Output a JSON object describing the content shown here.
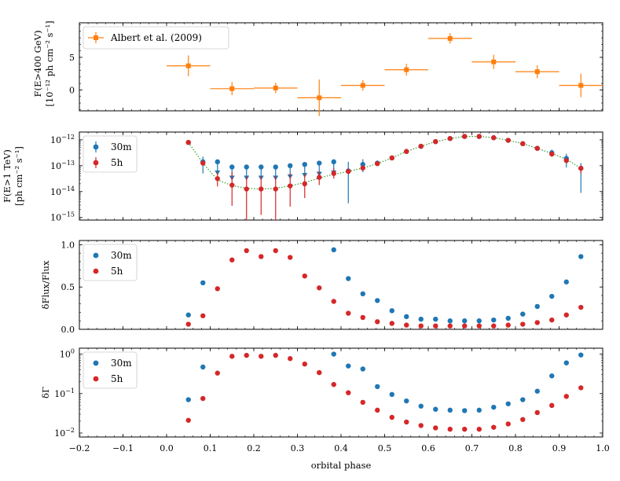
{
  "chart_data": [
    {
      "type": "scatter",
      "panel": "top",
      "ylabel_line1": "F(E>400 GeV)",
      "ylabel_line2": "[10⁻¹² ph cm⁻² s⁻¹]",
      "ylim": [
        -3.2,
        10.3
      ],
      "yticks": [
        0,
        5
      ],
      "ytick_labels": [
        "0",
        "5"
      ],
      "legend": [
        "Albert et al. (2009)"
      ],
      "series": [
        {
          "name": "Albert et al. (2009)",
          "color": "#ff7f0e",
          "x": [
            0.05,
            0.15,
            0.25,
            0.35,
            0.45,
            0.55,
            0.65,
            0.75,
            0.85,
            0.95
          ],
          "xerr": 0.05,
          "y": [
            3.7,
            0.2,
            0.3,
            -1.2,
            0.7,
            3.1,
            7.9,
            4.3,
            2.8,
            0.7
          ],
          "yerr": [
            1.6,
            1.0,
            0.8,
            2.8,
            0.8,
            0.9,
            0.8,
            1.1,
            1.0,
            1.8
          ]
        }
      ]
    },
    {
      "type": "scatter",
      "panel": "flux",
      "yscale": "log",
      "ylabel_line1": "F(E>1 TeV)",
      "ylabel_line2": "[ph cm⁻² s⁻¹]",
      "ylim_log10": [
        -15.1,
        -11.7
      ],
      "ytick_exponents": [
        -12,
        -13,
        -14,
        -15
      ],
      "tick_base": "10",
      "legend": [
        "30m",
        "5h"
      ],
      "x": [
        0.05,
        0.0833,
        0.1167,
        0.15,
        0.1833,
        0.2167,
        0.25,
        0.2833,
        0.3167,
        0.35,
        0.3833,
        0.4167,
        0.45,
        0.4833,
        0.5167,
        0.55,
        0.5833,
        0.6167,
        0.65,
        0.6833,
        0.7167,
        0.75,
        0.7833,
        0.8167,
        0.85,
        0.8833,
        0.9167,
        0.95
      ],
      "model_log10": [
        -12.1,
        -12.9,
        -13.55,
        -13.77,
        -13.87,
        -13.9,
        -13.87,
        -13.78,
        -13.65,
        -13.48,
        -13.33,
        -13.22,
        -13.09,
        -12.92,
        -12.7,
        -12.45,
        -12.25,
        -12.07,
        -11.95,
        -11.87,
        -11.87,
        -11.92,
        -12.02,
        -12.15,
        -12.33,
        -12.53,
        -12.75,
        -13.1
      ],
      "series": [
        {
          "name": "30m",
          "color": "#1f77b4",
          "detected": [
            true,
            true,
            false,
            false,
            false,
            false,
            false,
            false,
            false,
            false,
            false,
            true,
            true,
            true,
            true,
            true,
            true,
            true,
            true,
            true,
            true,
            true,
            true,
            true,
            true,
            true,
            true,
            true
          ],
          "log10_value": [
            -12.1,
            -12.85,
            -12.85,
            -13.05,
            -13.05,
            -13.05,
            -13.05,
            -13.0,
            -12.95,
            -12.9,
            -12.85,
            -13.2,
            -12.95,
            -12.9,
            -12.7,
            -12.45,
            -12.25,
            -12.07,
            -11.95,
            -11.87,
            -11.87,
            -11.92,
            -12.02,
            -12.15,
            -12.33,
            -12.5,
            -12.72,
            -13.1
          ],
          "err_lo_log10": [
            0,
            0.45,
            0,
            0,
            0,
            0,
            0,
            0,
            0,
            0,
            0,
            1.25,
            0.3,
            0.1,
            0.05,
            0,
            0,
            0,
            0,
            0,
            0,
            0,
            0,
            0,
            0,
            0.15,
            0.35,
            0.95
          ],
          "err_hi_log10": [
            0,
            0.2,
            0,
            0,
            0,
            0,
            0,
            0,
            0,
            0,
            0,
            0.35,
            0.2,
            0.1,
            0.05,
            0,
            0,
            0,
            0,
            0,
            0,
            0,
            0,
            0,
            0,
            0.12,
            0.18,
            0.2
          ]
        },
        {
          "name": "5h",
          "color": "#d62728",
          "log10_value": [
            -12.1,
            -12.9,
            -13.5,
            -13.75,
            -13.9,
            -13.9,
            -13.9,
            -13.78,
            -13.7,
            -13.45,
            -13.3,
            -13.22,
            -13.09,
            -12.92,
            -12.7,
            -12.45,
            -12.25,
            -12.07,
            -11.95,
            -11.87,
            -11.87,
            -11.92,
            -12.02,
            -12.15,
            -12.33,
            -12.55,
            -12.8,
            -13.1
          ],
          "err_lo_log10": [
            0,
            0.1,
            0.3,
            0.8,
            1.3,
            1.0,
            1.4,
            0.8,
            0.55,
            0.3,
            0.2,
            0.1,
            0.08,
            0.05,
            0,
            0,
            0,
            0,
            0,
            0,
            0,
            0,
            0,
            0,
            0,
            0.05,
            0.1,
            0.2
          ],
          "err_hi_log10": [
            0,
            0.1,
            0.25,
            0.5,
            0.5,
            0.5,
            0.5,
            0.5,
            0.4,
            0.25,
            0.2,
            0.1,
            0.08,
            0.05,
            0,
            0,
            0,
            0,
            0,
            0,
            0,
            0,
            0,
            0,
            0,
            0.05,
            0.08,
            0.1
          ]
        }
      ]
    },
    {
      "type": "scatter",
      "panel": "dflux",
      "ylabel": "δFlux/Flux",
      "ylim": [
        0,
        1.05
      ],
      "yticks": [
        0,
        0.5,
        1
      ],
      "ytick_labels": [
        "0.0",
        "0.5",
        "1.0"
      ],
      "legend": [
        "30m",
        "5h"
      ],
      "series": [
        {
          "name": "30m",
          "color": "#1f77b4",
          "x": [
            0.05,
            0.0833,
            0.3833,
            0.4167,
            0.45,
            0.4833,
            0.5167,
            0.55,
            0.5833,
            0.6167,
            0.65,
            0.6833,
            0.7167,
            0.75,
            0.7833,
            0.8167,
            0.85,
            0.8833,
            0.9167,
            0.95
          ],
          "y": [
            0.17,
            0.55,
            0.94,
            0.6,
            0.42,
            0.34,
            0.22,
            0.15,
            0.12,
            0.12,
            0.1,
            0.1,
            0.1,
            0.11,
            0.13,
            0.18,
            0.27,
            0.39,
            0.56,
            0.86
          ]
        },
        {
          "name": "5h",
          "color": "#d62728",
          "x": [
            0.05,
            0.0833,
            0.1167,
            0.15,
            0.1833,
            0.2167,
            0.25,
            0.2833,
            0.3167,
            0.35,
            0.3833,
            0.4167,
            0.45,
            0.4833,
            0.5167,
            0.55,
            0.5833,
            0.6167,
            0.65,
            0.6833,
            0.7167,
            0.75,
            0.7833,
            0.8167,
            0.85,
            0.8833,
            0.9167,
            0.95
          ],
          "y": [
            0.06,
            0.16,
            0.48,
            0.82,
            0.93,
            0.86,
            0.93,
            0.85,
            0.63,
            0.49,
            0.33,
            0.19,
            0.14,
            0.09,
            0.07,
            0.05,
            0.04,
            0.04,
            0.04,
            0.04,
            0.04,
            0.04,
            0.05,
            0.06,
            0.08,
            0.11,
            0.17,
            0.26
          ]
        }
      ]
    },
    {
      "type": "scatter",
      "panel": "dgamma",
      "yscale": "log",
      "ylabel": "δΓ",
      "xlabel": "orbital phase",
      "ylim_log10": [
        -2.1,
        0.15
      ],
      "ytick_exponents": [
        0,
        -1,
        -2
      ],
      "tick_base": "10",
      "legend": [
        "30m",
        "5h"
      ],
      "x_ticks": [
        -0.2,
        -0.1,
        0.0,
        0.1,
        0.2,
        0.3,
        0.4,
        0.5,
        0.6,
        0.7,
        0.8,
        0.9,
        1.0
      ],
      "x_tick_labels": [
        "−0.2",
        "−0.1",
        "0.0",
        "0.1",
        "0.2",
        "0.3",
        "0.4",
        "0.5",
        "0.6",
        "0.7",
        "0.8",
        "0.9",
        "1.0"
      ],
      "xlim": [
        -0.2,
        1.0
      ],
      "series": [
        {
          "name": "30m",
          "color": "#1f77b4",
          "x": [
            0.05,
            0.0833,
            0.3833,
            0.4167,
            0.45,
            0.4833,
            0.5167,
            0.55,
            0.5833,
            0.6167,
            0.65,
            0.6833,
            0.7167,
            0.75,
            0.7833,
            0.8167,
            0.85,
            0.8833,
            0.9167,
            0.95
          ],
          "y": [
            0.07,
            0.47,
            1.0,
            0.5,
            0.42,
            0.15,
            0.095,
            0.065,
            0.048,
            0.04,
            0.038,
            0.037,
            0.038,
            0.045,
            0.055,
            0.07,
            0.115,
            0.28,
            0.6,
            0.95
          ]
        },
        {
          "name": "5h",
          "color": "#d62728",
          "x": [
            0.05,
            0.0833,
            0.1167,
            0.15,
            0.1833,
            0.2167,
            0.25,
            0.2833,
            0.3167,
            0.35,
            0.3833,
            0.4167,
            0.45,
            0.4833,
            0.5167,
            0.55,
            0.5833,
            0.6167,
            0.65,
            0.6833,
            0.7167,
            0.75,
            0.7833,
            0.8167,
            0.85,
            0.8833,
            0.9167,
            0.95
          ],
          "y": [
            0.021,
            0.075,
            0.33,
            0.88,
            0.93,
            0.88,
            0.93,
            0.77,
            0.56,
            0.34,
            0.17,
            0.105,
            0.06,
            0.038,
            0.025,
            0.019,
            0.0155,
            0.0135,
            0.0125,
            0.0125,
            0.0125,
            0.014,
            0.017,
            0.022,
            0.033,
            0.05,
            0.085,
            0.14
          ]
        }
      ]
    }
  ]
}
